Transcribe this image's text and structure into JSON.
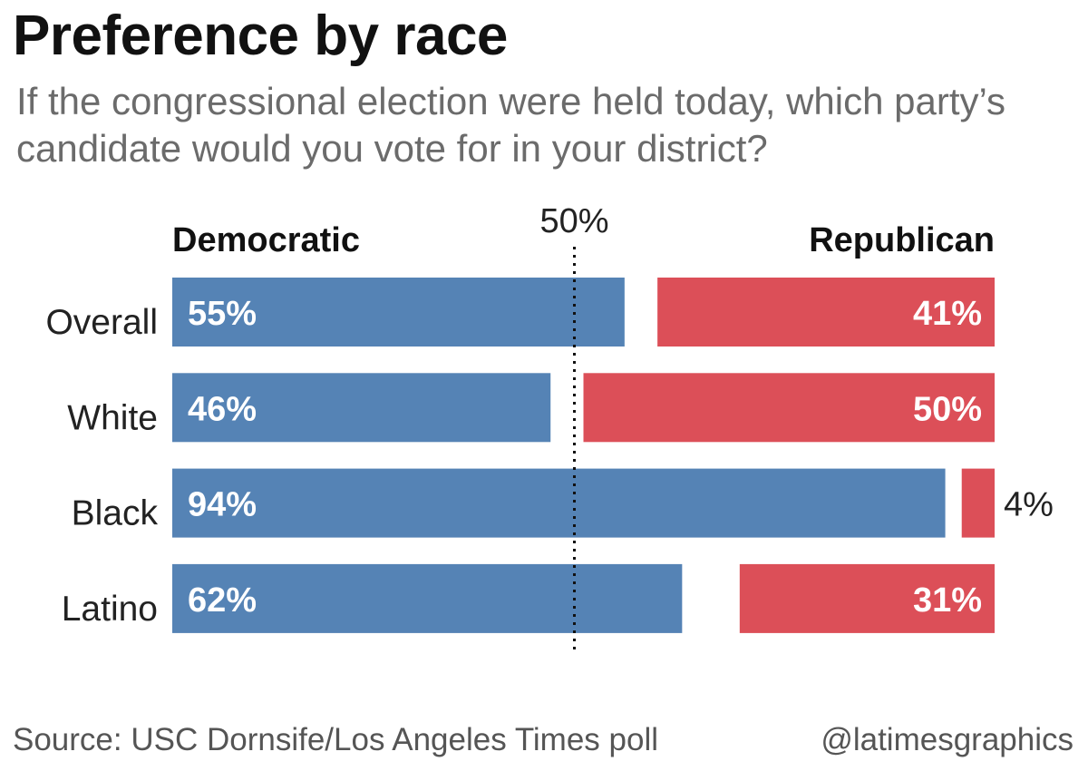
{
  "title": "Preference by race",
  "subtitle": "If the congressional election were held today, which party’s candidate would you vote for in your district?",
  "source": "Source: USC Dornsife/Los Angeles Times poll",
  "credit": "@latimesgraphics",
  "chart_data": {
    "type": "bar",
    "orientation": "horizontal-diverging",
    "categories": [
      "Overall",
      "White",
      "Black",
      "Latino"
    ],
    "series": [
      {
        "name": "Democratic",
        "values": [
          55,
          46,
          94,
          62
        ],
        "color": "#5583b5"
      },
      {
        "name": "Republican",
        "values": [
          41,
          50,
          4,
          31
        ],
        "color": "#dc4f58"
      }
    ],
    "value_labels": {
      "Democratic": [
        "55%",
        "46%",
        "94%",
        "62%"
      ],
      "Republican": [
        "41%",
        "50%",
        "4%",
        "31%"
      ]
    },
    "reference_line": {
      "value": 50,
      "label": "50%"
    },
    "xlim": [
      0,
      100
    ],
    "grid": false,
    "legend": "top"
  }
}
